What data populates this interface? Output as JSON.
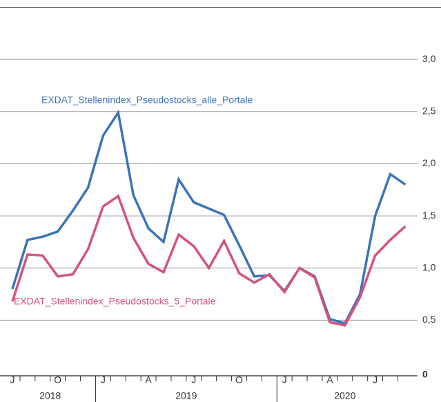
{
  "chart_data": {
    "type": "line",
    "x": [
      "2018-07",
      "2018-08",
      "2018-09",
      "2018-10",
      "2018-11",
      "2018-12",
      "2019-01",
      "2019-02",
      "2019-03",
      "2019-04",
      "2019-05",
      "2019-06",
      "2019-07",
      "2019-08",
      "2019-09",
      "2019-10",
      "2019-11",
      "2019-12",
      "2020-01",
      "2020-02",
      "2020-03",
      "2020-04",
      "2020-05",
      "2020-06",
      "2020-07",
      "2020-08",
      "2020-09"
    ],
    "xticks": [
      {
        "value": "2018-07",
        "label": "J"
      },
      {
        "value": "2018-10",
        "label": "O"
      },
      {
        "value": "2019-01",
        "label": "J"
      },
      {
        "value": "2019-04",
        "label": "A"
      },
      {
        "value": "2019-07",
        "label": "J"
      },
      {
        "value": "2019-10",
        "label": "O"
      },
      {
        "value": "2020-01",
        "label": "J"
      },
      {
        "value": "2020-04",
        "label": "A"
      },
      {
        "value": "2020-07",
        "label": "J"
      }
    ],
    "year_labels": [
      "2018",
      "2019",
      "2020"
    ],
    "series": [
      {
        "name": "EXDAT_Stellenindex_Pseudostocks_alle_Portale",
        "color": "#3b73b9",
        "values": [
          0.8,
          1.27,
          1.3,
          1.35,
          1.55,
          1.77,
          2.27,
          2.49,
          1.7,
          1.38,
          1.25,
          1.85,
          1.63,
          1.57,
          1.51,
          1.22,
          0.92,
          0.93,
          0.78,
          1.0,
          0.92,
          0.51,
          0.47,
          0.75,
          1.5,
          1.9,
          1.8
        ]
      },
      {
        "name": "EXDAT_Stellenindex_Pseudostocks_5_Portale",
        "color": "#d4537b",
        "values": [
          0.68,
          1.13,
          1.12,
          0.92,
          0.94,
          1.18,
          1.59,
          1.69,
          1.29,
          1.04,
          0.96,
          1.32,
          1.21,
          1.0,
          1.26,
          0.95,
          0.86,
          0.94,
          0.77,
          1.0,
          0.91,
          0.48,
          0.45,
          0.72,
          1.12,
          1.27,
          1.4
        ]
      }
    ],
    "ylim": [
      0,
      3.5
    ],
    "yticks": [
      0,
      {
        "value": 0.5,
        "label": "0,5"
      },
      {
        "value": 1,
        "label": "1,0"
      },
      {
        "value": 1.5,
        "label": "1,5"
      },
      {
        "value": 2,
        "label": "2,0"
      },
      {
        "value": 2.5,
        "label": "2,5"
      },
      {
        "value": 3,
        "label": "3,0"
      }
    ],
    "grid": true
  }
}
